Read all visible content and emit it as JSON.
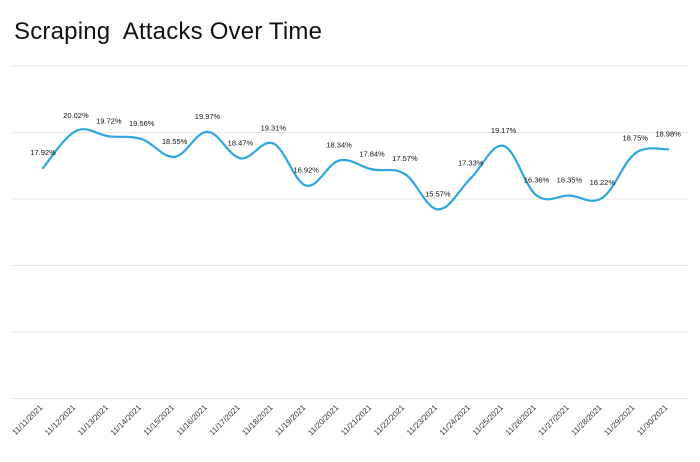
{
  "chart_data": {
    "type": "line",
    "title": "Scraping  Attacks Over Time",
    "xlabel": "",
    "ylabel": "",
    "x": [
      "11/11/2021",
      "11/12/2021",
      "11/13/2021",
      "11/14/2021",
      "11/15/2021",
      "11/16/2021",
      "11/17/2021",
      "11/18/2021",
      "11/19/2021",
      "11/20/2021",
      "11/21/2021",
      "11/22/2021",
      "11/23/2021",
      "11/24/2021",
      "11/25/2021",
      "11/26/2021",
      "11/27/2021",
      "11/28/2021",
      "11/29/2021",
      "11/30/2021"
    ],
    "series": [
      {
        "values": [
          17.92,
          20.02,
          19.72,
          19.56,
          18.55,
          19.97,
          18.47,
          19.31,
          16.92,
          18.34,
          17.84,
          17.57,
          15.57,
          17.33,
          19.17,
          16.36,
          16.35,
          16.22,
          18.75,
          18.98
        ],
        "labels": [
          "17.92%",
          "20.02%",
          "19.72%",
          "19.56%",
          "18.55%",
          "19.97%",
          "18.47%",
          "19.31%",
          "16.92%",
          "18.34%",
          "17.84%",
          "17.57%",
          "15.57%",
          "17.33%",
          "19.17%",
          "16.36%",
          "16.35%",
          "16.22%",
          "18.75%",
          "18.98%"
        ],
        "color": "#2ea6df"
      }
    ],
    "grid": true,
    "legend": "none"
  }
}
